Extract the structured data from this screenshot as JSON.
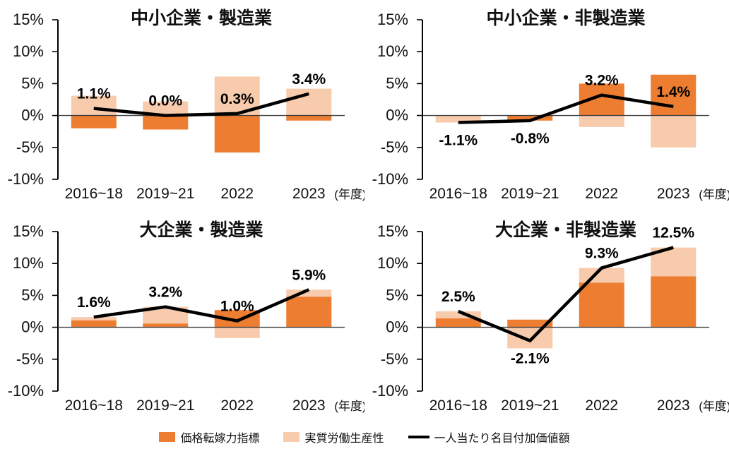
{
  "legend": {
    "items": [
      {
        "label": "価格転嫁力指標",
        "swatch": "bar",
        "color": "#ED7D31"
      },
      {
        "label": "実質労働生産性",
        "swatch": "bar",
        "color": "#F8CBAD"
      },
      {
        "label": "一人当たり名目付加価値額",
        "swatch": "line",
        "color": "#000000"
      }
    ]
  },
  "axis": {
    "ylim": [
      -10,
      15
    ],
    "yticks": [
      {
        "value": 15,
        "label": "15%"
      },
      {
        "value": 10,
        "label": "10%"
      },
      {
        "value": 5,
        "label": "5%"
      },
      {
        "value": 0,
        "label": "0%"
      },
      {
        "value": -5,
        "label": "-5%"
      },
      {
        "value": -10,
        "label": "-10%"
      }
    ],
    "x_suffix": "(年度)"
  },
  "chart_data": [
    {
      "type": "bar+line",
      "title": "中小企業・製造業",
      "categories": [
        "2016~18",
        "2019~21",
        "2022",
        "2023"
      ],
      "ylim": [
        -10,
        15
      ],
      "bar_series": [
        {
          "name": "価格転嫁力指標",
          "color": "#ED7D31",
          "values": [
            -2.0,
            -2.2,
            -5.8,
            -0.8
          ]
        },
        {
          "name": "実質労働生産性",
          "color": "#F8CBAD",
          "values": [
            3.1,
            2.2,
            6.1,
            4.2
          ]
        }
      ],
      "line_series": {
        "name": "一人当たり名目付加価値額",
        "color": "#000000",
        "values": [
          1.1,
          0.0,
          0.3,
          3.4
        ],
        "labels": [
          "1.1%",
          "0.0%",
          "0.3%",
          "3.4%"
        ],
        "label_positions": [
          "above",
          "above",
          "above",
          "above"
        ]
      }
    },
    {
      "type": "bar+line",
      "title": "中小企業・非製造業",
      "categories": [
        "2016~18",
        "2019~21",
        "2022",
        "2023"
      ],
      "ylim": [
        -10,
        15
      ],
      "bar_series": [
        {
          "name": "価格転嫁力指標",
          "color": "#ED7D31",
          "values": [
            0.0,
            -0.8,
            5.0,
            6.4
          ]
        },
        {
          "name": "実質労働生産性",
          "color": "#F8CBAD",
          "values": [
            -1.1,
            0.0,
            -1.8,
            -5.0
          ]
        }
      ],
      "line_series": {
        "name": "一人当たり名目付加価値額",
        "color": "#000000",
        "values": [
          -1.1,
          -0.8,
          3.2,
          1.4
        ],
        "labels": [
          "-1.1%",
          "-0.8%",
          "3.2%",
          "1.4%"
        ],
        "label_positions": [
          "below",
          "below",
          "above",
          "above"
        ]
      }
    },
    {
      "type": "bar+line",
      "title": "大企業・製造業",
      "categories": [
        "2016~18",
        "2019~21",
        "2022",
        "2023"
      ],
      "ylim": [
        -10,
        15
      ],
      "bar_series": [
        {
          "name": "価格転嫁力指標",
          "color": "#ED7D31",
          "values": [
            1.1,
            0.6,
            2.7,
            4.8
          ]
        },
        {
          "name": "実質労働生産性",
          "color": "#F8CBAD",
          "values": [
            0.5,
            2.6,
            -1.7,
            1.1
          ]
        }
      ],
      "line_series": {
        "name": "一人当たり名目付加価値額",
        "color": "#000000",
        "values": [
          1.6,
          3.2,
          1.0,
          5.9
        ],
        "labels": [
          "1.6%",
          "3.2%",
          "1.0%",
          "5.9%"
        ],
        "label_positions": [
          "above",
          "above",
          "above",
          "above"
        ]
      }
    },
    {
      "type": "bar+line",
      "title": "大企業・非製造業",
      "categories": [
        "2016~18",
        "2019~21",
        "2022",
        "2023"
      ],
      "ylim": [
        -10,
        15
      ],
      "bar_series": [
        {
          "name": "価格転嫁力指標",
          "color": "#ED7D31",
          "values": [
            1.4,
            1.2,
            7.0,
            8.0
          ]
        },
        {
          "name": "実質労働生産性",
          "color": "#F8CBAD",
          "values": [
            1.1,
            -3.3,
            2.3,
            4.5
          ]
        }
      ],
      "line_series": {
        "name": "一人当たり名目付加価値額",
        "color": "#000000",
        "values": [
          2.5,
          -2.1,
          9.3,
          12.5
        ],
        "labels": [
          "2.5%",
          "-2.1%",
          "9.3%",
          "12.5%"
        ],
        "label_positions": [
          "above",
          "below",
          "above",
          "above"
        ]
      }
    }
  ]
}
